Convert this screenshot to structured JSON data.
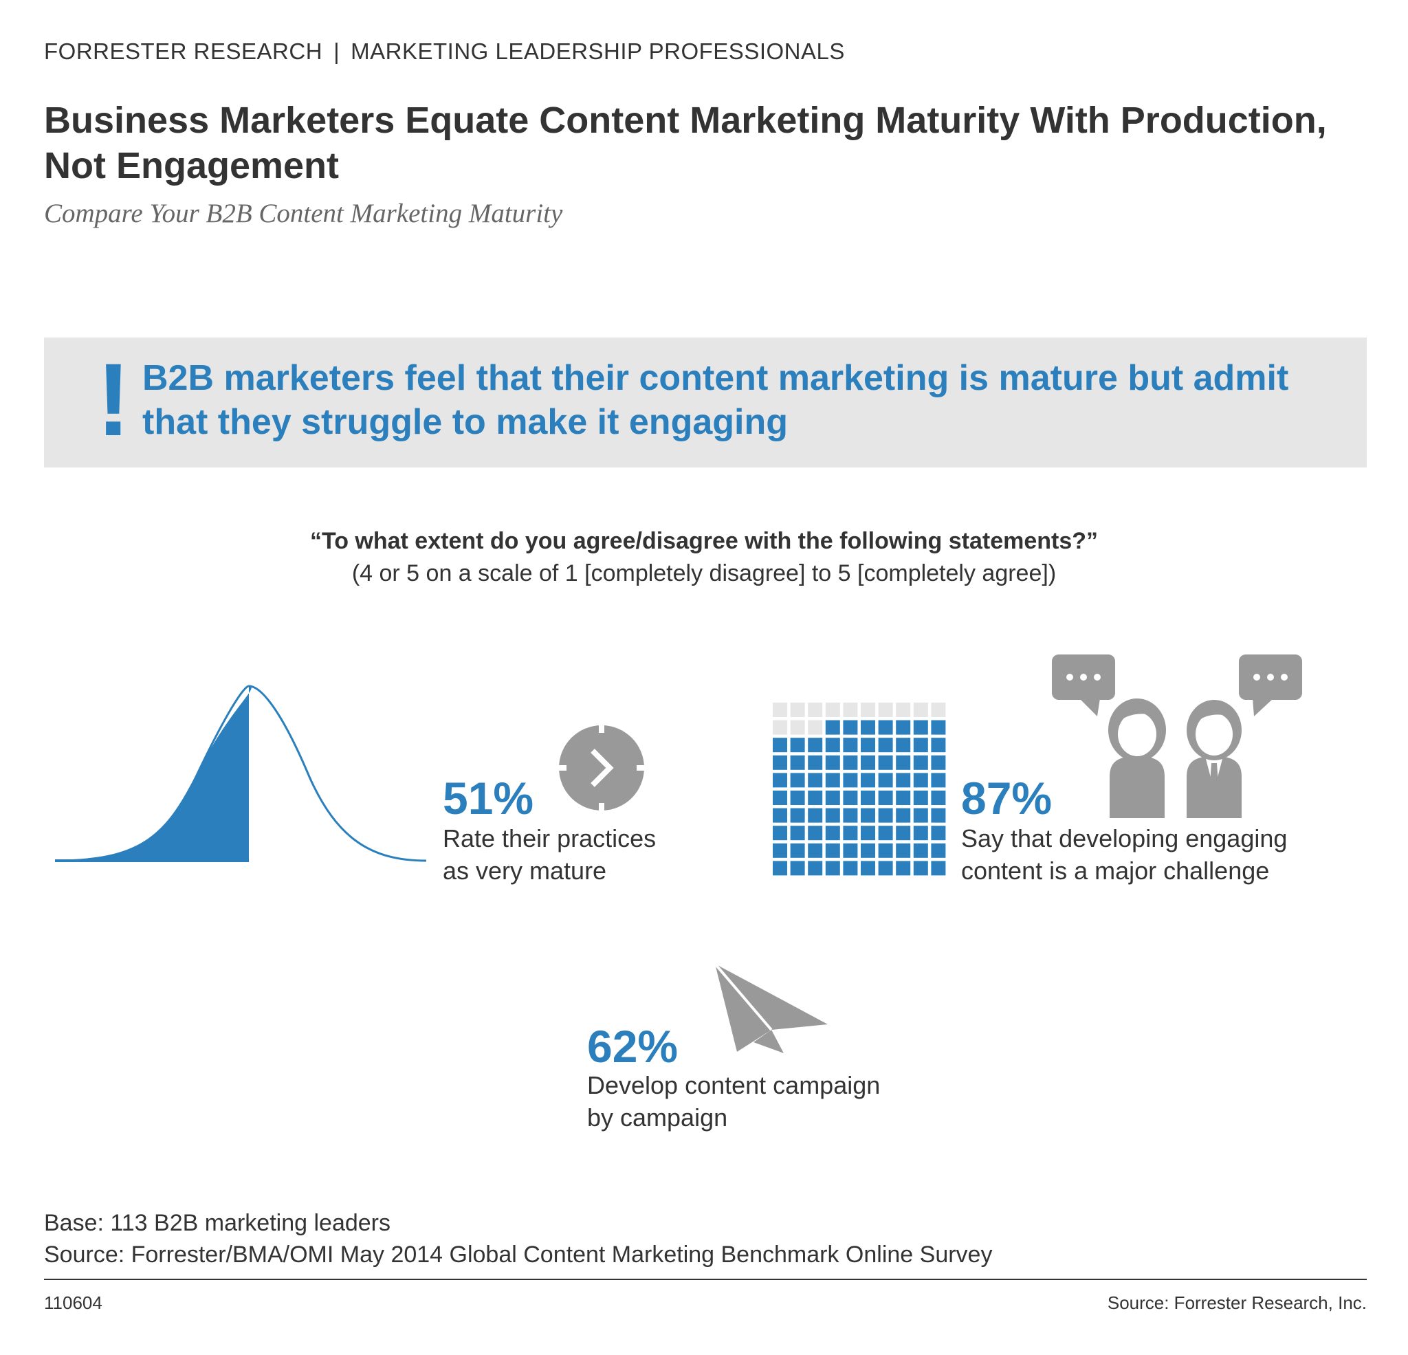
{
  "header": {
    "publisher": "FORRESTER RESEARCH",
    "separator": "|",
    "audience": "MARKETING LEADERSHIP PROFESSIONALS"
  },
  "title": "Business Marketers Equate Content Marketing Maturity With Production, Not Engagement",
  "subtitle": "Compare Your B2B Content Marketing Maturity",
  "callout": {
    "mark": "!",
    "text": "B2B marketers feel that their content marketing is mature but admit that they struggle to make it engaging"
  },
  "survey": {
    "question": "“To what extent do you agree/disagree with the following statements?”",
    "scale": "(4 or 5 on a scale of 1 [completely disagree] to 5 [completely agree])"
  },
  "stats": {
    "mature": {
      "value": "51%",
      "desc_line1": "Rate their practices",
      "desc_line2": "as very mature",
      "icon": "bell-curve-icon",
      "icon2": "clock-icon"
    },
    "engaging": {
      "value": "87%",
      "desc_line1": "Say that developing engaging",
      "desc_line2": "content is a major challenge",
      "icon": "waffle-grid-icon",
      "icon2": "people-speech-icon",
      "filled_fraction": 0.87
    },
    "campaign": {
      "value": "62%",
      "desc_line1": "Develop content campaign",
      "desc_line2": "by campaign",
      "icon": "paper-plane-icon"
    }
  },
  "footer": {
    "base": "Base: 113 B2B marketing leaders",
    "source": "Source: Forrester/BMA/OMI May 2014 Global Content Marketing Benchmark Online Survey",
    "code": "110604",
    "credit": "Source: Forrester Research, Inc."
  },
  "colors": {
    "accent": "#2a7fbc",
    "gray_icon": "#999999",
    "light_gray": "#e6e6e6",
    "text": "#333333"
  }
}
